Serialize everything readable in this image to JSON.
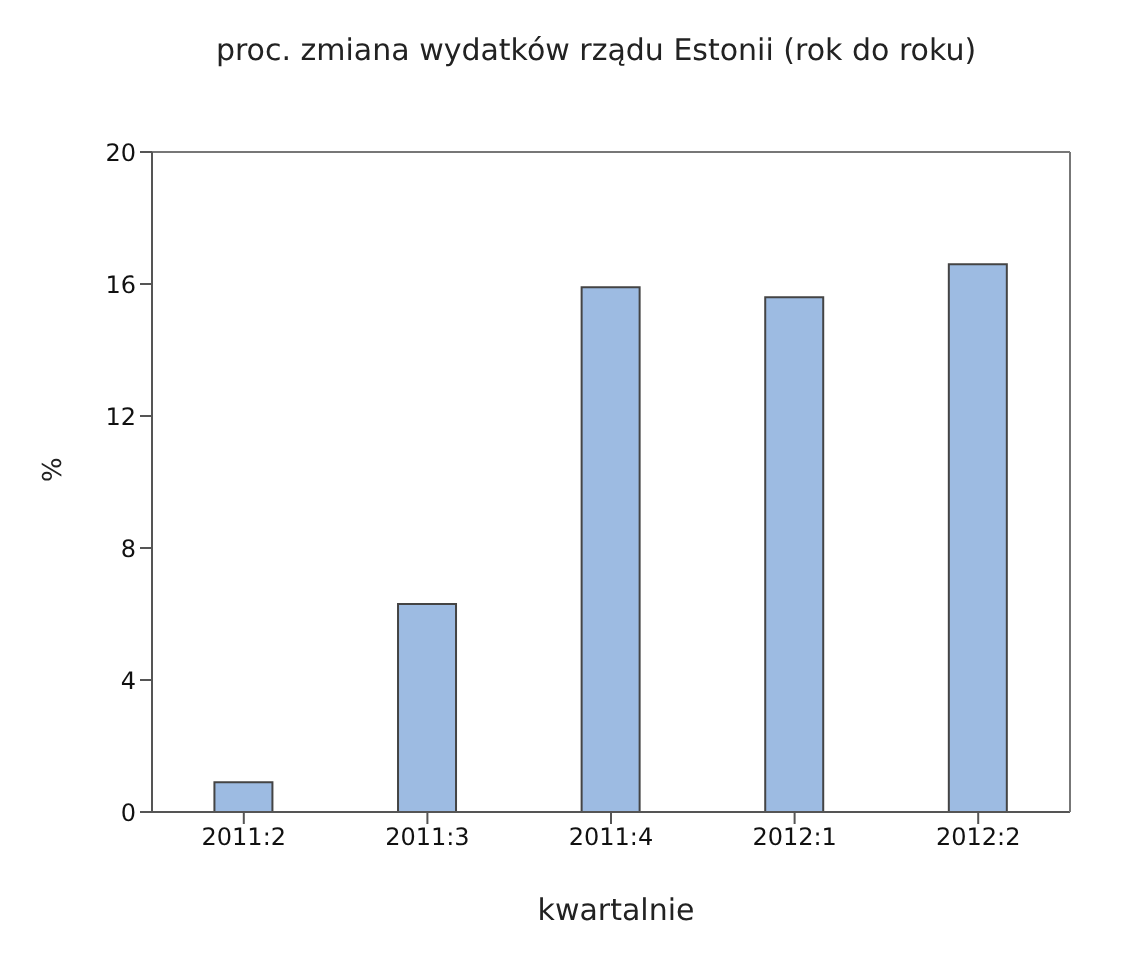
{
  "chart_data": {
    "type": "bar",
    "title": "proc. zmiana wydatków rządu Estonii (rok do roku)",
    "xlabel": "kwartalnie",
    "ylabel": "%",
    "categories": [
      "2011:2",
      "2011:3",
      "2011:4",
      "2012:1",
      "2012:2"
    ],
    "values": [
      0.9,
      6.3,
      15.9,
      15.6,
      16.6
    ],
    "color": "#9dbbe2",
    "ylim": [
      0,
      20
    ],
    "yticks": [
      0,
      4,
      8,
      12,
      16,
      20
    ],
    "grid": false,
    "legend": false
  }
}
